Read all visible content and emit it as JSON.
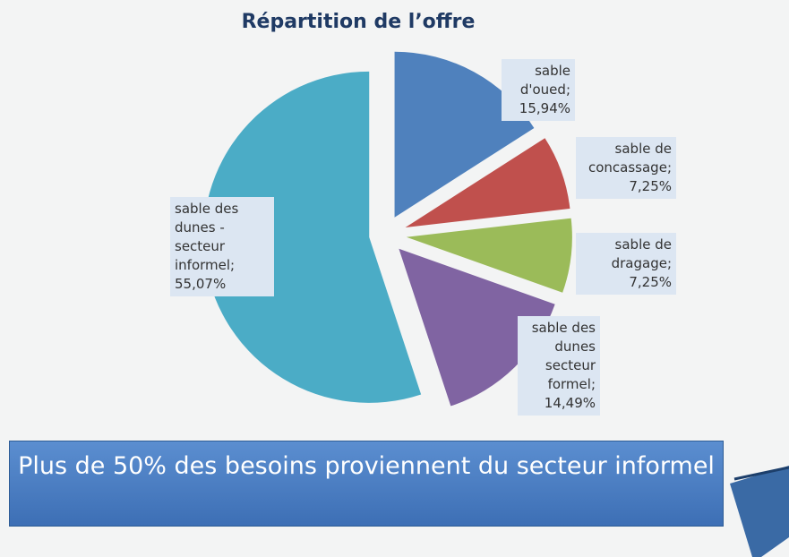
{
  "chart_data": {
    "type": "pie",
    "title": "Répartition de l’offre",
    "categories": [
      "sable d'oued",
      "sable de concassage",
      "sable de dragage",
      "sable des dunes secteur formel",
      "sable des dunes - secteur informel"
    ],
    "values": [
      15.94,
      7.25,
      7.25,
      14.49,
      55.07
    ],
    "value_labels": [
      "15,94%",
      "7,25%",
      "7,25%",
      "14,49%",
      "55,07%"
    ],
    "label_separator": ";",
    "colors": [
      "#4f81bd",
      "#c0504d",
      "#9bbb59",
      "#8064a2",
      "#4bacc6"
    ]
  },
  "banner": {
    "text": "Plus de 50% des besoins proviennent du secteur informel"
  }
}
